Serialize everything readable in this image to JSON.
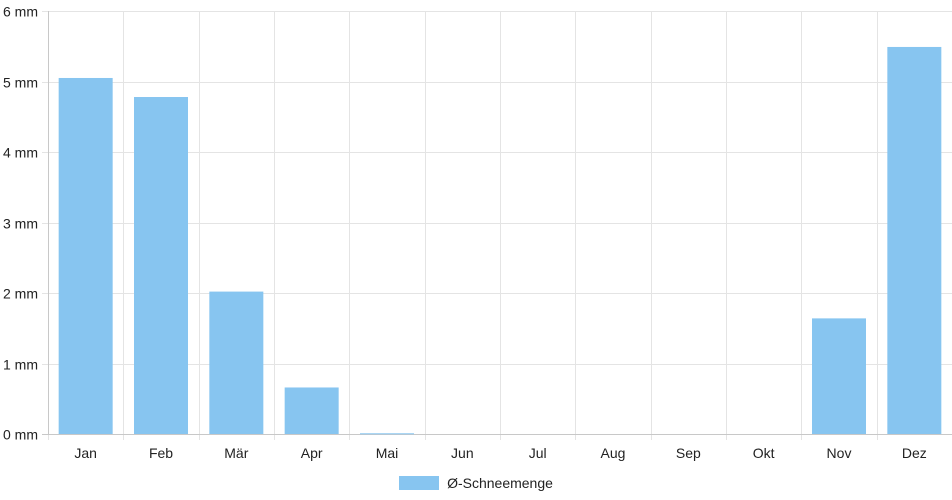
{
  "chart_data": {
    "type": "bar",
    "categories": [
      "Jan",
      "Feb",
      "Mär",
      "Apr",
      "Mai",
      "Jun",
      "Jul",
      "Aug",
      "Sep",
      "Okt",
      "Nov",
      "Dez"
    ],
    "series": [
      {
        "name": "Ø-Schneemenge",
        "values": [
          5.05,
          4.78,
          2.02,
          0.66,
          0.01,
          0,
          0,
          0,
          0,
          0,
          1.64,
          5.49
        ],
        "color": "#87c5f0"
      }
    ],
    "ylim": [
      0,
      6
    ],
    "yticks": [
      0,
      1,
      2,
      3,
      4,
      5,
      6
    ],
    "ytick_labels": [
      "0 mm",
      "1 mm",
      "2 mm",
      "3 mm",
      "4 mm",
      "5 mm",
      "6 mm"
    ],
    "grid": true,
    "legend_position": "bottom-center",
    "colors": {
      "grid": "#e4e4e4",
      "axis": "#c8c8c8",
      "text": "#222222"
    }
  }
}
